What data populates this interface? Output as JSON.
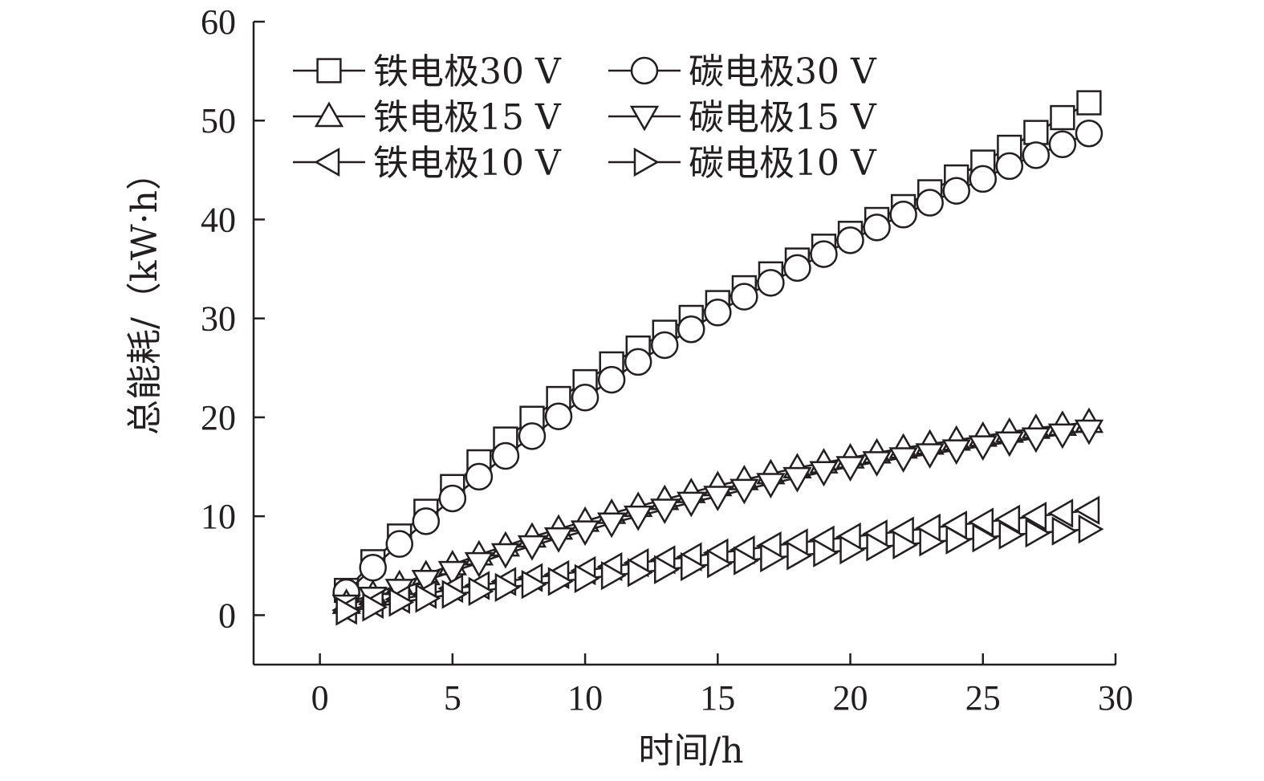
{
  "chart_data": {
    "type": "line",
    "xlabel": "时间/h",
    "ylabel": "总能耗/（kW·h）",
    "xlim": [
      -2.5,
      30
    ],
    "ylim": [
      -5,
      60
    ],
    "xticks": [
      0,
      5,
      10,
      15,
      20,
      25,
      30
    ],
    "yticks": [
      0,
      10,
      20,
      30,
      40,
      50,
      60
    ],
    "grid": false,
    "legend_position": "top-left",
    "x": [
      1,
      2,
      3,
      4,
      5,
      6,
      7,
      8,
      9,
      10,
      11,
      12,
      13,
      14,
      15,
      16,
      17,
      18,
      19,
      20,
      21,
      22,
      23,
      24,
      25,
      26,
      27,
      28,
      29
    ],
    "series": [
      {
        "name": "铁电极30 V",
        "marker": "square",
        "values": [
          2.5,
          5.4,
          8.0,
          10.5,
          13.0,
          15.5,
          17.8,
          19.9,
          21.9,
          23.6,
          25.4,
          27.0,
          28.6,
          30.1,
          31.6,
          33.1,
          34.5,
          35.9,
          37.3,
          38.6,
          40.0,
          41.3,
          42.8,
          44.3,
          45.8,
          47.3,
          48.8,
          50.3,
          51.8
        ]
      },
      {
        "name": "碳电极30 V",
        "marker": "circle",
        "values": [
          2.3,
          4.8,
          7.2,
          9.5,
          11.8,
          14.0,
          16.1,
          18.1,
          20.1,
          22.0,
          23.8,
          25.6,
          27.3,
          28.9,
          30.6,
          32.2,
          33.6,
          35.1,
          36.5,
          37.9,
          39.2,
          40.5,
          41.7,
          42.9,
          44.1,
          45.4,
          46.5,
          47.6,
          48.7
        ]
      },
      {
        "name": "铁电极15 V",
        "marker": "triangle-up",
        "values": [
          1.2,
          2.1,
          3.1,
          4.1,
          5.1,
          6.1,
          7.0,
          7.9,
          8.7,
          9.5,
          10.3,
          11.0,
          11.7,
          12.4,
          13.1,
          13.7,
          14.3,
          14.9,
          15.4,
          15.9,
          16.4,
          16.9,
          17.3,
          17.7,
          18.1,
          18.5,
          18.9,
          19.2,
          19.5
        ]
      },
      {
        "name": "碳电极15 V",
        "marker": "triangle-down",
        "values": [
          1.0,
          1.8,
          2.6,
          3.5,
          4.4,
          5.3,
          6.2,
          7.0,
          7.8,
          8.5,
          9.3,
          10.0,
          10.7,
          11.4,
          12.0,
          12.7,
          13.3,
          13.9,
          14.5,
          15.0,
          15.5,
          15.9,
          16.3,
          16.7,
          17.1,
          17.5,
          17.9,
          18.3,
          18.7
        ]
      },
      {
        "name": "铁电极10 V",
        "marker": "triangle-left",
        "values": [
          0.5,
          1.1,
          1.6,
          2.1,
          2.7,
          3.0,
          3.4,
          3.8,
          4.1,
          4.5,
          4.9,
          5.3,
          5.6,
          5.9,
          6.3,
          6.6,
          7.0,
          7.3,
          7.6,
          7.9,
          8.2,
          8.5,
          8.8,
          9.1,
          9.4,
          9.7,
          10.0,
          10.3,
          10.6
        ]
      },
      {
        "name": "碳电极10 V",
        "marker": "triangle-right",
        "values": [
          0.4,
          0.8,
          1.3,
          1.7,
          2.1,
          2.4,
          2.8,
          3.1,
          3.4,
          3.7,
          4.0,
          4.3,
          4.6,
          4.9,
          5.2,
          5.5,
          5.8,
          6.0,
          6.3,
          6.6,
          6.9,
          7.1,
          7.4,
          7.6,
          7.8,
          8.1,
          8.3,
          8.5,
          8.7
        ]
      }
    ]
  },
  "colors": {
    "ink": "#231f20",
    "marker_fill": "#ffffff",
    "background": "#ffffff"
  }
}
